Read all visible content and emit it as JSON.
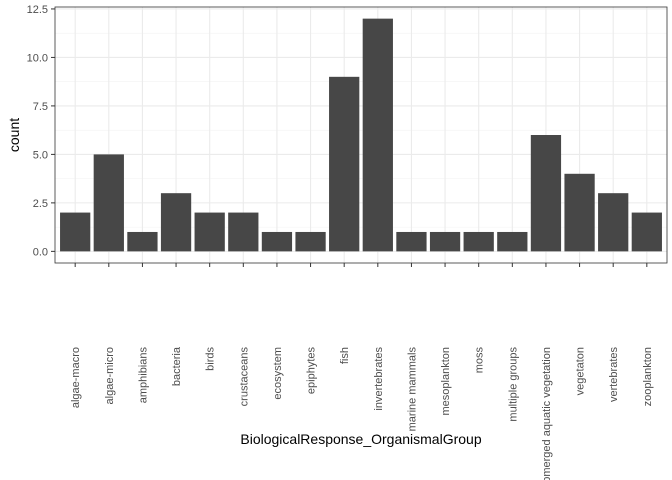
{
  "chart_data": {
    "type": "bar",
    "xlabel": "BiologicalResponse_OrganismalGroup",
    "ylabel": "count",
    "ylim": [
      -0.6,
      12.6
    ],
    "yticks": [
      0,
      2.5,
      5,
      7.5,
      10,
      12.5
    ],
    "ytick_labels": [
      "0.0",
      "2.5",
      "5.0",
      "7.5",
      "10.0",
      "12.5"
    ],
    "grid": true,
    "bar_color": "#474747",
    "categories": [
      "algae-macro",
      "algae-micro",
      "amphibians",
      "bacteria",
      "birds",
      "crustaceans",
      "ecosystem",
      "epiphytes",
      "fish",
      "invertebrates",
      "marine mammals",
      "mesoplankton",
      "moss",
      "multiple groups",
      "submerged aquatic vegetation",
      "vegetaton",
      "vertebrates",
      "zooplankton"
    ],
    "values": [
      2,
      5,
      1,
      3,
      2,
      2,
      1,
      1,
      9,
      12,
      1,
      1,
      1,
      1,
      6,
      4,
      3,
      2
    ]
  }
}
